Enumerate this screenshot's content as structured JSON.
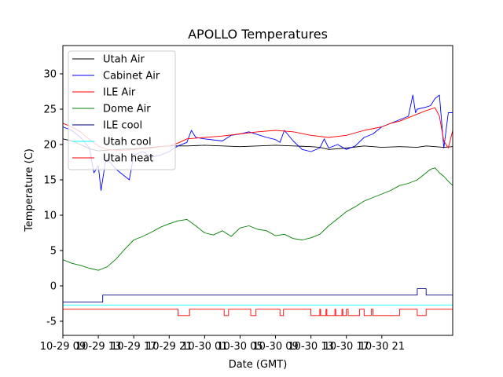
{
  "chart_data": {
    "type": "line",
    "title": "APOLLO Temperatures",
    "xlabel": "Date (GMT)",
    "ylabel": "Temperature (C)",
    "xlim": [
      0,
      44
    ],
    "ylim": [
      -7,
      34
    ],
    "yticks": [
      -5,
      0,
      5,
      10,
      15,
      20,
      25,
      30
    ],
    "xticks": [
      {
        "value": 0,
        "label": "10-29 09"
      },
      {
        "value": 4,
        "label": "10-29 13"
      },
      {
        "value": 8,
        "label": "10-29 17"
      },
      {
        "value": 12,
        "label": "10-29 21"
      },
      {
        "value": 16,
        "label": "10-30 01"
      },
      {
        "value": 20,
        "label": "10-30 05"
      },
      {
        "value": 24,
        "label": "10-30 09"
      },
      {
        "value": 28,
        "label": "10-30 13"
      },
      {
        "value": 32,
        "label": "10-30 17"
      },
      {
        "value": 36,
        "label": "10-30 21"
      }
    ],
    "legend_position": "upper-left",
    "series": [
      {
        "name": "Utah Air",
        "color": "#000000",
        "x": [
          0,
          1,
          2,
          3,
          4,
          5,
          6,
          8,
          10,
          12,
          14,
          16,
          18,
          20,
          22,
          24,
          26,
          28,
          29,
          30,
          32,
          34,
          36,
          38,
          40,
          41,
          42,
          43,
          44
        ],
        "y": [
          20.8,
          20.5,
          20.0,
          19.4,
          19.1,
          19.2,
          19.3,
          19.4,
          19.6,
          19.8,
          19.8,
          19.9,
          19.8,
          19.7,
          19.8,
          19.9,
          19.8,
          19.7,
          19.6,
          19.3,
          19.5,
          19.8,
          19.6,
          19.7,
          19.6,
          19.8,
          19.7,
          19.6,
          19.7
        ]
      },
      {
        "name": "Cabinet Air",
        "color": "#0000ff",
        "x": [
          0,
          1,
          2,
          3,
          3.5,
          4,
          4.3,
          4.8,
          5,
          6,
          7,
          7.5,
          8,
          9,
          10,
          11,
          12,
          13,
          14,
          14.5,
          15,
          16,
          18,
          19,
          20,
          21,
          22,
          23,
          24,
          24.5,
          25,
          26,
          27,
          28,
          29,
          29.5,
          30,
          31,
          32,
          33,
          34,
          35,
          36,
          37,
          38,
          39,
          39.5,
          39.8,
          40,
          41,
          41.5,
          42,
          42.5,
          43,
          43.5,
          44
        ],
        "y": [
          22.5,
          22.0,
          21.0,
          19.5,
          16.0,
          17.0,
          13.5,
          17.5,
          18.0,
          16.5,
          15.5,
          15.0,
          18.5,
          19.0,
          18.2,
          18.5,
          19.0,
          19.8,
          20.3,
          22.0,
          21.0,
          20.8,
          20.5,
          21.3,
          21.5,
          21.8,
          21.4,
          21.0,
          20.7,
          20.3,
          22.0,
          20.5,
          19.3,
          19.0,
          19.5,
          20.8,
          19.5,
          20.0,
          19.3,
          19.8,
          21.0,
          21.5,
          22.5,
          23.0,
          23.5,
          24.0,
          27.0,
          24.5,
          25.0,
          25.3,
          25.5,
          26.5,
          27.0,
          19.5,
          24.5,
          24.5
        ]
      },
      {
        "name": "ILE Air",
        "color": "#ff0000",
        "x": [
          0,
          1,
          2,
          3,
          4,
          5,
          6,
          7,
          8,
          9,
          10,
          11,
          12,
          13,
          14,
          16,
          18,
          20,
          22,
          24,
          26,
          28,
          30,
          32,
          34,
          36,
          37,
          38,
          39,
          40,
          41,
          42,
          42.5,
          43,
          43.5,
          44
        ],
        "y": [
          23.0,
          22.5,
          21.8,
          20.7,
          19.8,
          19.3,
          19.2,
          19.2,
          19.3,
          19.4,
          19.5,
          19.7,
          19.8,
          20.2,
          20.8,
          21.0,
          21.2,
          21.5,
          21.8,
          22.0,
          21.8,
          21.3,
          21.0,
          21.3,
          22.0,
          22.5,
          23.0,
          23.3,
          23.8,
          24.3,
          24.8,
          25.2,
          24.0,
          20.5,
          19.5,
          22.0
        ]
      },
      {
        "name": "Dome Air",
        "color": "#008000",
        "x": [
          0,
          1,
          2,
          3,
          4,
          5,
          6,
          7,
          8,
          9,
          10,
          11,
          12,
          13,
          14,
          15,
          16,
          17,
          18,
          19,
          20,
          21,
          22,
          23,
          24,
          25,
          26,
          27,
          28,
          29,
          30,
          31,
          32,
          33,
          34,
          35,
          36,
          37,
          38,
          39,
          40,
          41,
          41.5,
          42,
          42.5,
          43,
          43.5,
          44
        ],
        "y": [
          3.7,
          3.2,
          2.9,
          2.5,
          2.2,
          2.7,
          3.8,
          5.2,
          6.5,
          7.0,
          7.6,
          8.3,
          8.8,
          9.2,
          9.4,
          8.5,
          7.5,
          7.2,
          7.8,
          7.0,
          8.2,
          8.5,
          8.0,
          7.8,
          7.1,
          7.3,
          6.7,
          6.5,
          6.8,
          7.3,
          8.5,
          9.5,
          10.5,
          11.2,
          12.0,
          12.5,
          13.0,
          13.5,
          14.2,
          14.5,
          15.0,
          16.0,
          16.5,
          16.7,
          16.0,
          15.5,
          14.8,
          14.2
        ]
      },
      {
        "name": "ILE cool",
        "color": "#000080",
        "x": [
          0,
          4.5,
          4.5,
          38,
          38,
          40,
          40,
          41,
          41,
          44
        ],
        "y": [
          -2.3,
          -2.3,
          -1.3,
          -1.3,
          -1.3,
          -1.3,
          -0.4,
          -0.4,
          -1.3,
          -1.3
        ]
      },
      {
        "name": "Utah cool",
        "color": "#00ffff",
        "x": [
          0,
          44
        ],
        "y": [
          -2.7,
          -2.7
        ]
      },
      {
        "name": "Utah heat",
        "color": "#ff0000",
        "x": [
          0,
          13,
          13,
          14.3,
          14.3,
          18.2,
          18.2,
          18.7,
          18.7,
          21.2,
          21.2,
          21.8,
          21.8,
          24.5,
          24.5,
          24.9,
          24.9,
          28,
          28,
          29,
          29,
          29.1,
          29.1,
          29.7,
          29.7,
          29.8,
          29.8,
          30.7,
          30.7,
          30.8,
          30.8,
          31.5,
          31.5,
          31.6,
          31.6,
          32,
          32,
          32.2,
          32.2,
          33.5,
          33.5,
          34,
          34,
          34.8,
          34.8,
          35,
          35,
          38,
          38,
          40,
          40,
          41,
          41,
          44
        ],
        "y": [
          -3.3,
          -3.3,
          -4.2,
          -4.2,
          -3.3,
          -3.3,
          -4.2,
          -4.2,
          -3.3,
          -3.3,
          -4.2,
          -4.2,
          -3.3,
          -3.3,
          -4.2,
          -4.2,
          -3.3,
          -3.3,
          -4.2,
          -4.2,
          -3.3,
          -3.3,
          -4.2,
          -4.2,
          -3.3,
          -3.3,
          -4.2,
          -4.2,
          -3.3,
          -3.3,
          -4.2,
          -4.2,
          -3.3,
          -3.3,
          -4.2,
          -4.2,
          -3.3,
          -3.3,
          -4.2,
          -4.2,
          -3.3,
          -3.3,
          -4.2,
          -4.2,
          -3.3,
          -3.3,
          -4.2,
          -4.2,
          -3.3,
          -3.3,
          -4.2,
          -4.2,
          -3.3,
          -3.3
        ]
      }
    ]
  }
}
